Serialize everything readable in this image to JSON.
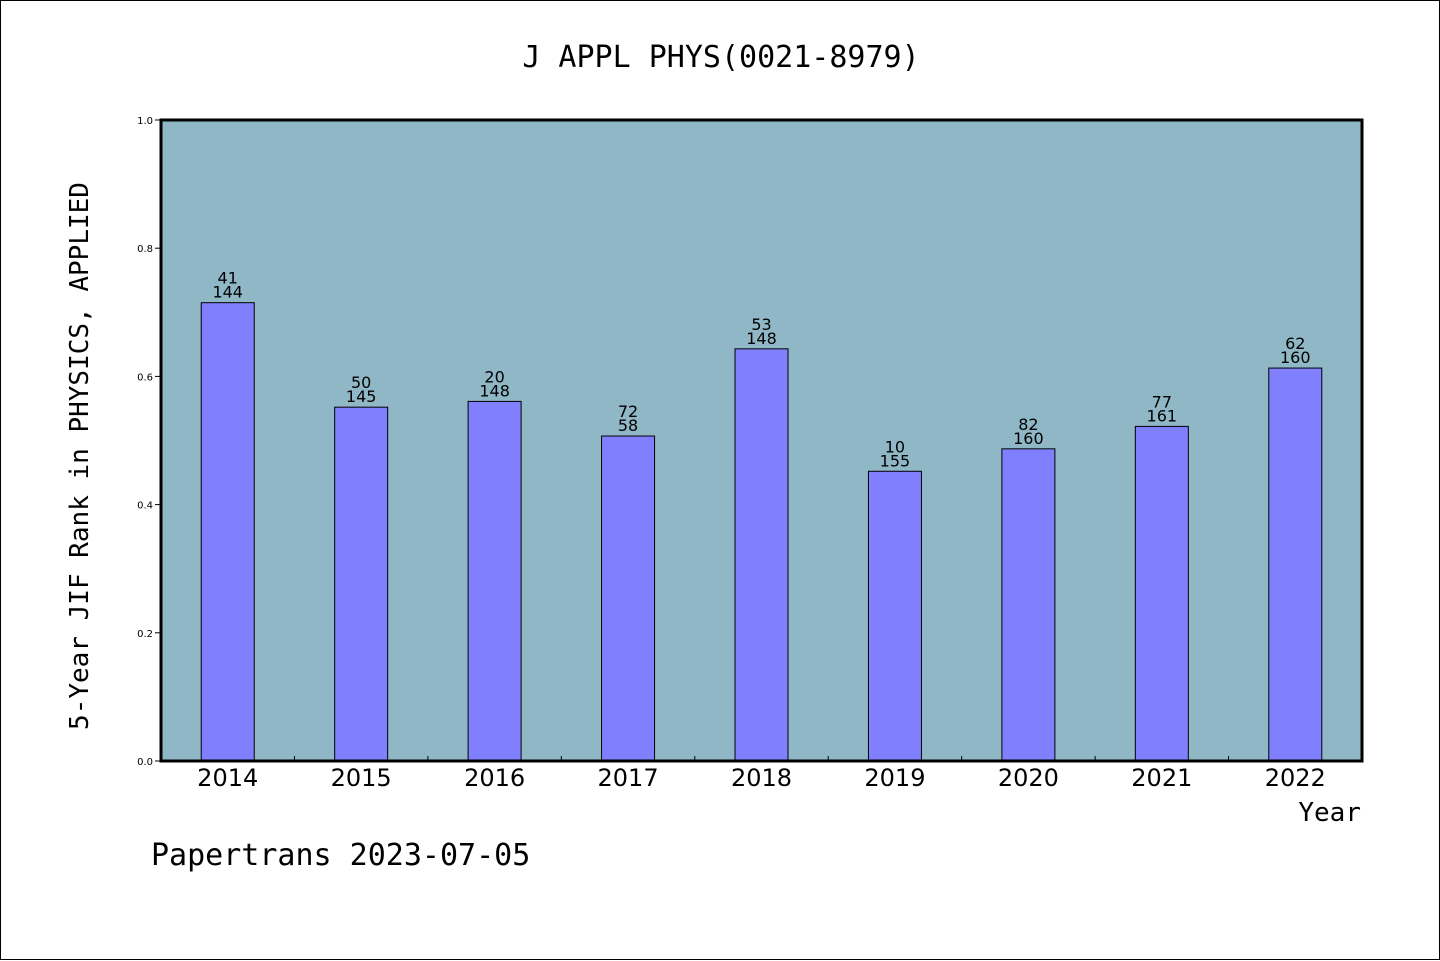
{
  "chart_data": {
    "type": "bar",
    "title": "J APPL PHYS(0021-8979)",
    "xlabel": "Year",
    "ylabel": "5-Year JIF Rank in PHYSICS, APPLIED",
    "ylim": [
      0,
      1.0
    ],
    "yticks": [
      0.0,
      0.2,
      0.4,
      0.6,
      0.8,
      1.0
    ],
    "ytick_labels": [
      "0.0",
      "0.2",
      "0.4",
      "0.6",
      "0.8",
      "1.0"
    ],
    "categories": [
      "2014",
      "2015",
      "2016",
      "2017",
      "2018",
      "2019",
      "2020",
      "2021",
      "2022"
    ],
    "values": [
      0.715,
      0.552,
      0.561,
      0.507,
      0.643,
      0.452,
      0.487,
      0.522,
      0.613
    ],
    "labels_top": [
      "41",
      "50",
      "20",
      "72",
      "53",
      "10",
      "82",
      "77",
      "62"
    ],
    "labels_bottom": [
      "144",
      "145",
      "148",
      "58",
      "148",
      "155",
      "160",
      "161",
      "160"
    ],
    "grid": false,
    "colors": {
      "plot_background": "#8fb7c6",
      "bar_fill": "#8080ff",
      "bar_stroke": "#000000"
    },
    "footer": "Papertrans 2023-07-05"
  }
}
